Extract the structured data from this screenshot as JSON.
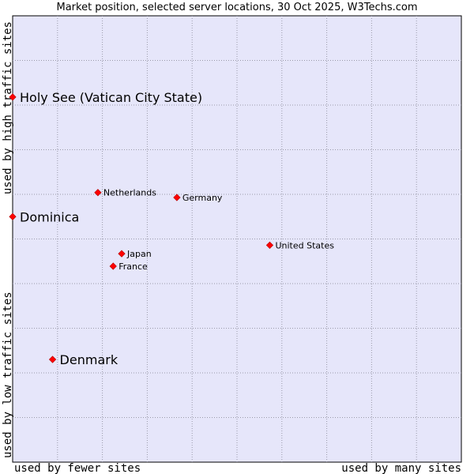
{
  "chart_data": {
    "type": "scatter",
    "title": "Market position, selected server locations, 30 Oct 2025, W3Techs.com",
    "xlabel_left": "used by fewer sites",
    "xlabel_right": "used by many sites",
    "ylabel_bottom": "used by low traffic sites",
    "ylabel_top": "used by high traffic sites",
    "xlim": [
      0,
      100
    ],
    "ylim": [
      0,
      100
    ],
    "grid": true,
    "marker_color": "#ff0000",
    "plot_background": "#e6e6fa",
    "points": [
      {
        "name": "Holy See (Vatican City State)",
        "x": 0.0,
        "y": 81.8,
        "highlight": true
      },
      {
        "name": "Dominica",
        "x": 0.0,
        "y": 55.0,
        "highlight": true
      },
      {
        "name": "Denmark",
        "x": 8.9,
        "y": 23.0,
        "highlight": true
      },
      {
        "name": "Netherlands",
        "x": 19.0,
        "y": 60.4,
        "highlight": false
      },
      {
        "name": "Germany",
        "x": 36.6,
        "y": 59.3,
        "highlight": false
      },
      {
        "name": "United States",
        "x": 57.3,
        "y": 48.6,
        "highlight": false
      },
      {
        "name": "Japan",
        "x": 24.3,
        "y": 46.7,
        "highlight": false
      },
      {
        "name": "France",
        "x": 22.4,
        "y": 43.9,
        "highlight": false
      }
    ]
  }
}
